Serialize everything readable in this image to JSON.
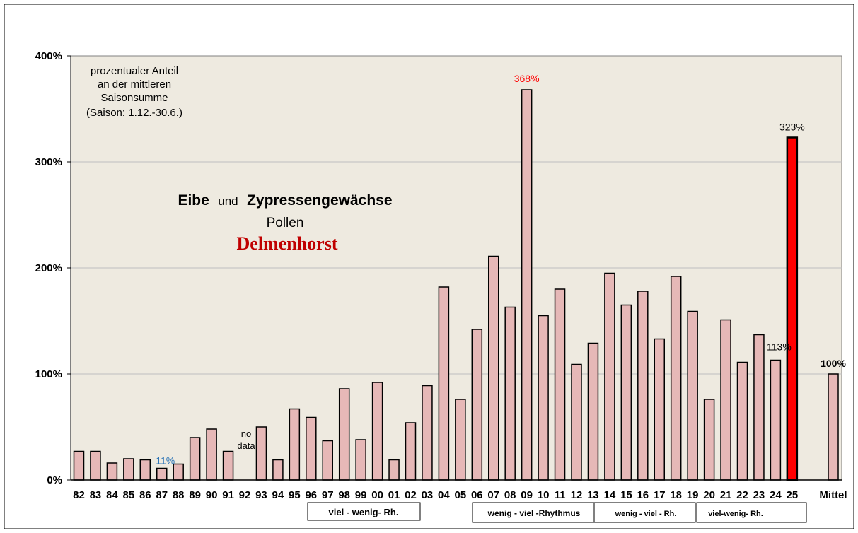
{
  "chart_data": {
    "type": "bar",
    "title": "Eibe und Zypressengewächse",
    "title_part1": "Eibe",
    "title_part2": "und",
    "title_part3": "Zypressengewächse",
    "subtitle": "Pollen",
    "location": "Delmenhorst",
    "note_lines": [
      "prozentualer Anteil",
      "an der mittleren",
      "Saisonsumme",
      "(Saison: 1.12.-30.6.)"
    ],
    "ylim": [
      0,
      400
    ],
    "yticks": [
      "0%",
      "100%",
      "200%",
      "300%",
      "400%"
    ],
    "ytick_values": [
      0,
      100,
      200,
      300,
      400
    ],
    "categories": [
      "82",
      "83",
      "84",
      "85",
      "86",
      "87",
      "88",
      "89",
      "90",
      "91",
      "92",
      "93",
      "94",
      "95",
      "96",
      "97",
      "98",
      "99",
      "00",
      "01",
      "02",
      "03",
      "04",
      "05",
      "06",
      "07",
      "08",
      "09",
      "10",
      "11",
      "12",
      "13",
      "14",
      "15",
      "16",
      "17",
      "18",
      "19",
      "20",
      "21",
      "22",
      "23",
      "24",
      "25",
      "Mittel"
    ],
    "values": [
      27,
      27,
      16,
      20,
      19,
      11,
      15,
      40,
      48,
      27,
      null,
      50,
      19,
      67,
      59,
      37,
      86,
      38,
      92,
      19,
      54,
      89,
      182,
      76,
      142,
      211,
      163,
      368,
      155,
      180,
      109,
      129,
      195,
      165,
      178,
      133,
      192,
      159,
      76,
      151,
      111,
      137,
      113,
      323,
      100
    ],
    "colors": {
      "bar": "#e6b8b7",
      "highlight": "#ff0000",
      "plot_bg": "#eeeae0",
      "grid": "#bfbfbf"
    },
    "annotations": [
      {
        "label": "368%",
        "category": "09",
        "color": "#ff0000"
      },
      {
        "label": "323%",
        "category": "25",
        "color": "#000000"
      },
      {
        "label": "113%",
        "category": "24",
        "color": "#000000"
      },
      {
        "label": "11%",
        "category": "87",
        "color": "#2e75b6"
      },
      {
        "label": "100%",
        "category": "Mittel",
        "color": "#000000"
      }
    ],
    "no_data": {
      "category": "92",
      "lines": [
        "no",
        "data"
      ]
    },
    "rhythm_boxes": [
      {
        "label": "viel - wenig- Rh."
      },
      {
        "label": "wenig - viel -Rhythmus"
      },
      {
        "label": "wenig - viel - Rh."
      },
      {
        "label": "viel-wenig- Rh."
      }
    ]
  }
}
